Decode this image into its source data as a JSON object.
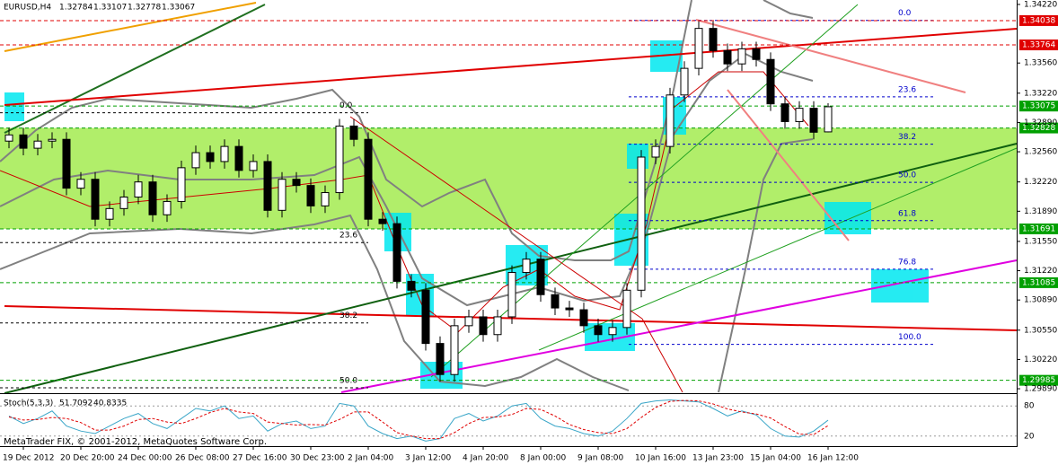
{
  "chart_data": {
    "type": "candlestick",
    "symbol": "EURUSD,H4",
    "categories": [
      null,
      "19 Dec 2012",
      null,
      null,
      null,
      "20 Dec 20:00",
      null,
      null,
      null,
      "24 Dec 00:00",
      null,
      null,
      null,
      "26 Dec 08:00",
      null,
      null,
      null,
      "27 Dec 16:00",
      null,
      null,
      null,
      "30 Dec 23:00",
      null,
      null,
      null,
      "2 Jan 04:00",
      null,
      null,
      null,
      "3 Jan 12:00",
      null,
      null,
      null,
      "4 Jan 20:00",
      null,
      null,
      null,
      "8 Jan 00:00",
      null,
      null,
      null,
      "9 Jan 08:00",
      null,
      null,
      null,
      "10 Jan 16:00",
      null,
      null,
      null,
      "13 Jan 23:00",
      null,
      null,
      null,
      "15 Jan 04:00",
      null,
      null,
      null,
      "16 Jan 12:00"
    ],
    "open": [
      1.3268,
      1.3275,
      1.326,
      1.3268,
      1.327,
      1.3215,
      1.3225,
      1.318,
      1.3192,
      1.3205,
      1.3222,
      1.3185,
      1.32,
      1.3238,
      1.3255,
      1.3245,
      1.3262,
      1.3235,
      1.3245,
      1.319,
      1.3225,
      1.3218,
      1.3195,
      1.321,
      1.3285,
      1.327,
      1.318,
      1.3175,
      1.311,
      1.31,
      1.304,
      1.3005,
      1.306,
      1.307,
      1.305,
      1.307,
      1.312,
      1.3135,
      1.3095,
      1.308,
      1.3078,
      1.306,
      1.305,
      1.3058,
      1.31,
      1.325,
      1.3262,
      1.332,
      1.335,
      1.3395,
      1.337,
      1.3355,
      1.3372,
      1.336,
      1.331,
      1.329,
      1.3305,
      1.32784
    ],
    "high": [
      1.3283,
      1.3283,
      1.3276,
      1.3278,
      1.3278,
      1.3233,
      1.3233,
      1.32,
      1.3213,
      1.323,
      1.323,
      1.3208,
      1.3246,
      1.3263,
      1.3263,
      1.327,
      1.327,
      1.3253,
      1.3253,
      1.3233,
      1.3233,
      1.3226,
      1.3218,
      1.3293,
      1.3293,
      1.3278,
      1.3188,
      1.3183,
      1.3118,
      1.3108,
      1.3048,
      1.3068,
      1.3078,
      1.3078,
      1.3078,
      1.3128,
      1.3143,
      1.3143,
      1.3103,
      1.3088,
      1.3086,
      1.3068,
      1.3066,
      1.3108,
      1.3258,
      1.327,
      1.3328,
      1.3358,
      1.3403,
      1.3403,
      1.3378,
      1.338,
      1.338,
      1.3368,
      1.3318,
      1.3313,
      1.3313,
      1.33107
    ],
    "low": [
      1.326,
      1.3252,
      1.3252,
      1.326,
      1.3207,
      1.3207,
      1.3172,
      1.3172,
      1.3184,
      1.3197,
      1.3177,
      1.3177,
      1.3192,
      1.323,
      1.3237,
      1.3237,
      1.3227,
      1.3227,
      1.3182,
      1.3182,
      1.321,
      1.3187,
      1.3187,
      1.3202,
      1.3262,
      1.3172,
      1.3167,
      1.3102,
      1.3092,
      1.3032,
      1.2997,
      1.2997,
      1.3052,
      1.3042,
      1.3042,
      1.3062,
      1.3112,
      1.3087,
      1.3072,
      1.307,
      1.3052,
      1.3042,
      1.3042,
      1.305,
      1.3092,
      1.3242,
      1.3254,
      1.3312,
      1.3342,
      1.3362,
      1.3347,
      1.3347,
      1.3352,
      1.3302,
      1.3282,
      1.3282,
      1.327,
      1.32778
    ],
    "close": [
      1.3275,
      1.326,
      1.3268,
      1.327,
      1.3215,
      1.3225,
      1.318,
      1.3192,
      1.3205,
      1.3222,
      1.3185,
      1.32,
      1.3238,
      1.3255,
      1.3245,
      1.3262,
      1.3235,
      1.3245,
      1.319,
      1.3225,
      1.3218,
      1.3195,
      1.321,
      1.3285,
      1.327,
      1.318,
      1.3175,
      1.311,
      1.31,
      1.304,
      1.3005,
      1.306,
      1.307,
      1.305,
      1.307,
      1.312,
      1.3135,
      1.3095,
      1.308,
      1.3078,
      1.306,
      1.305,
      1.3058,
      1.31,
      1.325,
      1.3262,
      1.332,
      1.335,
      1.3395,
      1.337,
      1.3355,
      1.3372,
      1.336,
      1.331,
      1.329,
      1.3305,
      1.3278,
      1.33067
    ],
    "bull_color": "#ffffff",
    "bear_color": "#000000",
    "ylim": [
      1.2985,
      1.3427
    ],
    "yticks": [
      {
        "value": 1.3422,
        "label": "1.34220"
      },
      {
        "value": 1.3356,
        "label": "1.33560"
      },
      {
        "value": 1.3322,
        "label": "1.33220"
      },
      {
        "value": 1.3289,
        "label": "1.32890"
      },
      {
        "value": 1.3256,
        "label": "1.32560"
      },
      {
        "value": 1.3222,
        "label": "1.32220"
      },
      {
        "value": 1.3189,
        "label": "1.31890"
      },
      {
        "value": 1.3155,
        "label": "1.31550"
      },
      {
        "value": 1.3122,
        "label": "1.31220"
      },
      {
        "value": 1.3089,
        "label": "1.30890"
      },
      {
        "value": 1.3055,
        "label": "1.30550"
      },
      {
        "value": 1.3022,
        "label": "1.30220"
      },
      {
        "value": 1.2989,
        "label": "1.29890"
      }
    ],
    "levels": [
      {
        "value": 1.34038,
        "color": "#e00000"
      },
      {
        "value": 1.33764,
        "color": "#e00000"
      },
      {
        "value": 1.33075,
        "color": "#00a000"
      },
      {
        "value": 1.32828,
        "color": "#00a000"
      },
      {
        "value": 1.31691,
        "color": "#00a000"
      },
      {
        "value": 1.31085,
        "color": "#00a000"
      },
      {
        "value": 1.29985,
        "color": "#00a000"
      }
    ],
    "fibonacci": [
      {
        "high": 1.33,
        "low": 1.268,
        "color": "#000000",
        "levels": [
          {
            "value": 0,
            "label": "0.0"
          },
          23.6,
          38.2,
          {
            "value": 50,
            "label": "50.0"
          }
        ]
      },
      {
        "high": 1.3404,
        "low": 1.3039,
        "color": "#0000cc",
        "levels": [
          {
            "value": 0,
            "label": "0.0"
          },
          23.6,
          38.2,
          {
            "value": 50,
            "label": "50.0"
          },
          61.8,
          76.8,
          {
            "value": 100,
            "label": "100.0"
          }
        ]
      }
    ],
    "stoch": {
      "title": "Stoch(5,3,3)",
      "ylim": [
        0,
        100
      ],
      "yticks": [
        20,
        80
      ],
      "series": [
        {
          "color": "#3aa6c8",
          "values": [
            60,
            45,
            55,
            70,
            40,
            30,
            25,
            40,
            55,
            65,
            45,
            35,
            55,
            75,
            70,
            80,
            55,
            60,
            30,
            45,
            50,
            35,
            40,
            85,
            80,
            40,
            25,
            15,
            20,
            10,
            15,
            55,
            65,
            50,
            60,
            80,
            85,
            55,
            40,
            35,
            25,
            20,
            30,
            55,
            85,
            90,
            92,
            90,
            88,
            75,
            60,
            70,
            62,
            35,
            20,
            18,
            30,
            51.7092
          ]
        },
        {
          "color": "#e00000",
          "values": [
            58,
            52,
            53,
            57,
            55,
            47,
            32,
            32,
            40,
            53,
            55,
            48,
            45,
            55,
            67,
            75,
            68,
            65,
            48,
            45,
            42,
            43,
            42,
            53,
            68,
            68,
            48,
            27,
            20,
            15,
            15,
            27,
            45,
            57,
            58,
            63,
            75,
            73,
            60,
            43,
            33,
            27,
            25,
            35,
            57,
            77,
            89,
            91,
            90,
            84,
            74,
            68,
            64,
            56,
            39,
            24,
            23,
            40.8335
          ]
        }
      ]
    },
    "footer": "MetaTrader FIX, © 2001-2012, MetaQuotes Software Corp."
  }
}
